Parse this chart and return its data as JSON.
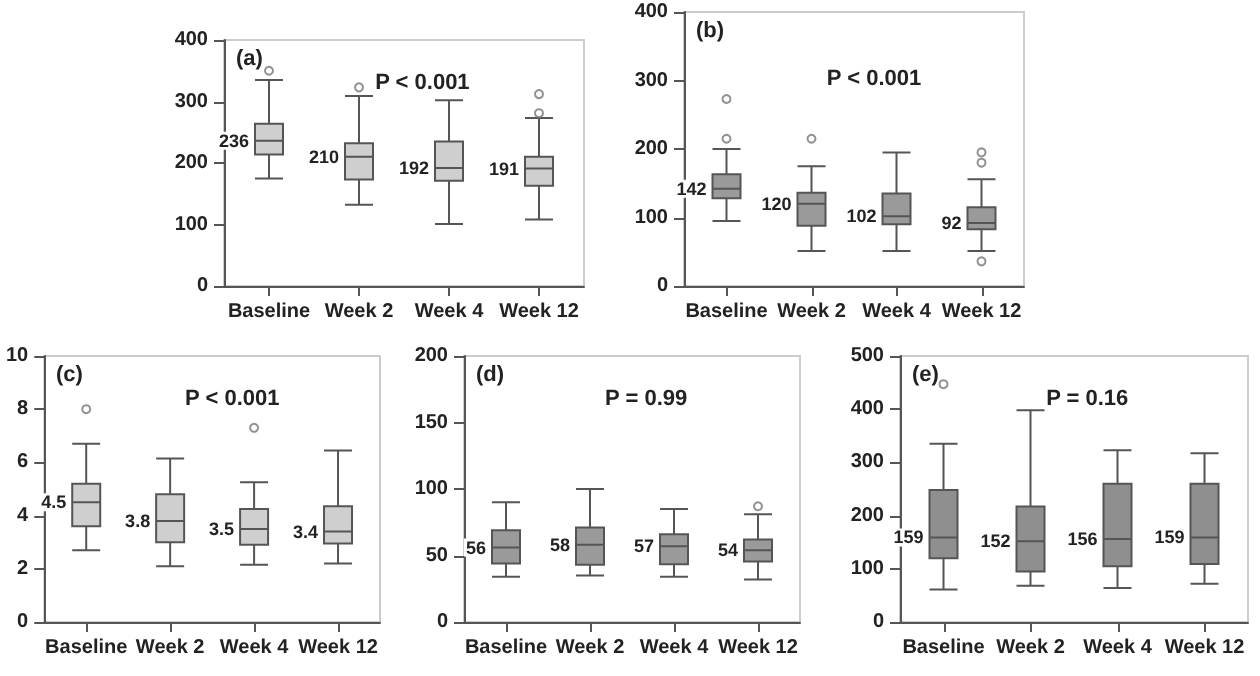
{
  "chart_data": [
    {
      "type": "box",
      "title": "(a)",
      "categories": [
        "Baseline",
        "Week 2",
        "Week 4",
        "Week 12"
      ],
      "ylim": [
        0,
        400
      ],
      "yticks": [
        0,
        100,
        200,
        300,
        400
      ],
      "grid": false,
      "series": [
        {
          "color": "#cfcfcf",
          "boxes": [
            {
              "low": 175,
              "q1": 214,
              "median": 236,
              "q3": 264,
              "high": 335,
              "outliers": [
                350
              ]
            },
            {
              "low": 132,
              "q1": 173,
              "median": 210,
              "q3": 232,
              "high": 309,
              "outliers": [
                323
              ]
            },
            {
              "low": 101,
              "q1": 171,
              "median": 192,
              "q3": 235,
              "high": 302
            },
            {
              "low": 108,
              "q1": 163,
              "median": 191,
              "q3": 210,
              "high": 273,
              "outliers": [
                281,
                312
              ]
            }
          ]
        }
      ],
      "annotations": [
        "P < 0.001",
        {
          "text": "236",
          "x": "Baseline",
          "y": 236
        },
        {
          "text": "210",
          "x": "Week 2",
          "y": 210
        },
        {
          "text": "192",
          "x": "Week 4",
          "y": 192
        },
        {
          "text": "191",
          "x": "Week 12",
          "y": 191
        }
      ]
    },
    {
      "type": "box",
      "title": "(b)",
      "categories": [
        "Baseline",
        "Week 2",
        "Week 4",
        "Week 12"
      ],
      "ylim": [
        0,
        400
      ],
      "yticks": [
        0,
        100,
        200,
        300,
        400
      ],
      "grid": false,
      "series": [
        {
          "color": "#9a9a9a",
          "boxes": [
            {
              "low": 95,
              "q1": 128,
              "median": 142,
              "q3": 163,
              "high": 200,
              "outliers": [
                215,
                273
              ]
            },
            {
              "low": 51,
              "q1": 88,
              "median": 120,
              "q3": 136,
              "high": 175,
              "outliers": [
                215
              ]
            },
            {
              "low": 51,
              "q1": 90,
              "median": 102,
              "q3": 135,
              "high": 195
            },
            {
              "low": 51,
              "q1": 83,
              "median": 92,
              "q3": 115,
              "high": 156,
              "outliers": [
                36,
                180,
                195
              ]
            }
          ]
        }
      ],
      "annotations": [
        "P < 0.001",
        {
          "text": "142",
          "x": "Baseline",
          "y": 142
        },
        {
          "text": "120",
          "x": "Week 2",
          "y": 120
        },
        {
          "text": "102",
          "x": "Week 4",
          "y": 102
        },
        {
          "text": "92",
          "x": "Week 12",
          "y": 92
        }
      ]
    },
    {
      "type": "box",
      "title": "(c)",
      "categories": [
        "Baseline",
        "Week 2",
        "Week 4",
        "Week 12"
      ],
      "ylim": [
        0,
        10
      ],
      "yticks": [
        0,
        2,
        4,
        6,
        8,
        10
      ],
      "grid": false,
      "series": [
        {
          "color": "#cfcfcf",
          "boxes": [
            {
              "low": 2.7,
              "q1": 3.6,
              "median": 4.5,
              "q3": 5.2,
              "high": 6.7,
              "outliers": [
                8.0
              ]
            },
            {
              "low": 2.1,
              "q1": 3.0,
              "median": 3.8,
              "q3": 4.8,
              "high": 6.15
            },
            {
              "low": 2.15,
              "q1": 2.9,
              "median": 3.5,
              "q3": 4.25,
              "high": 5.25,
              "outliers": [
                7.3
              ]
            },
            {
              "low": 2.2,
              "q1": 2.95,
              "median": 3.4,
              "q3": 4.35,
              "high": 6.45
            }
          ]
        }
      ],
      "annotations": [
        "P < 0.001",
        {
          "text": "4.5",
          "x": "Baseline",
          "y": 4.5
        },
        {
          "text": "3.8",
          "x": "Week 2",
          "y": 3.8
        },
        {
          "text": "3.5",
          "x": "Week 4",
          "y": 3.5
        },
        {
          "text": "3.4",
          "x": "Week 12",
          "y": 3.4
        }
      ]
    },
    {
      "type": "box",
      "title": "(d)",
      "categories": [
        "Baseline",
        "Week 2",
        "Week 4",
        "Week 12"
      ],
      "ylim": [
        0,
        200
      ],
      "yticks": [
        0,
        50,
        100,
        150,
        200
      ],
      "grid": false,
      "series": [
        {
          "color": "#9a9a9a",
          "boxes": [
            {
              "low": 34,
              "q1": 44,
              "median": 56,
              "q3": 69,
              "high": 90
            },
            {
              "low": 35,
              "q1": 43,
              "median": 58,
              "q3": 71,
              "high": 100
            },
            {
              "low": 34,
              "q1": 43.5,
              "median": 57,
              "q3": 66,
              "high": 85
            },
            {
              "low": 32,
              "q1": 45.5,
              "median": 54,
              "q3": 62,
              "high": 81,
              "outliers": [
                87
              ]
            }
          ]
        }
      ],
      "annotations": [
        "P = 0.99",
        {
          "text": "56",
          "x": "Baseline",
          "y": 56
        },
        {
          "text": "58",
          "x": "Week 2",
          "y": 58
        },
        {
          "text": "57",
          "x": "Week 4",
          "y": 57
        },
        {
          "text": "54",
          "x": "Week 12",
          "y": 54
        }
      ]
    },
    {
      "type": "box",
      "title": "(e)",
      "categories": [
        "Baseline",
        "Week 2",
        "Week 4",
        "Week 12"
      ],
      "ylim": [
        0,
        500
      ],
      "yticks": [
        0,
        100,
        200,
        300,
        400,
        500
      ],
      "grid": false,
      "series": [
        {
          "color": "#8f8f8f",
          "boxes": [
            {
              "low": 61,
              "q1": 120,
              "median": 159,
              "q3": 248,
              "high": 335,
              "outliers": [
                447
              ]
            },
            {
              "low": 68,
              "q1": 95,
              "median": 152,
              "q3": 217,
              "high": 398
            },
            {
              "low": 64,
              "q1": 105,
              "median": 156,
              "q3": 260,
              "high": 323
            },
            {
              "low": 72,
              "q1": 109,
              "median": 159,
              "q3": 260,
              "high": 317
            }
          ]
        }
      ],
      "annotations": [
        "P = 0.16",
        {
          "text": "159",
          "x": "Baseline",
          "y": 159
        },
        {
          "text": "152",
          "x": "Week 2",
          "y": 152
        },
        {
          "text": "156",
          "x": "Week 4",
          "y": 156
        },
        {
          "text": "159",
          "x": "Week 12",
          "y": 159
        }
      ]
    }
  ]
}
